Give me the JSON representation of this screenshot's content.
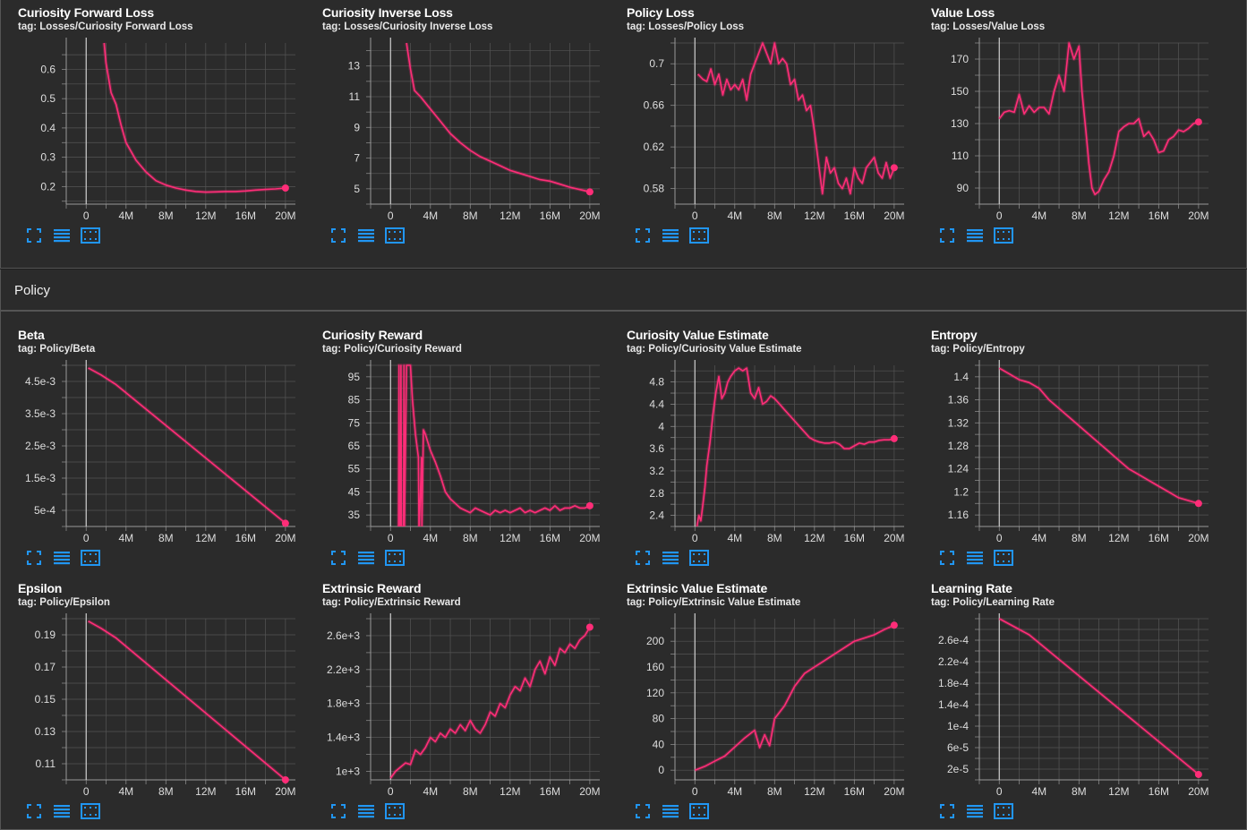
{
  "section_title": "Policy",
  "accent_color": "#ff2d78",
  "icons": [
    "fit-to-data-icon",
    "toggle-log-scale-icon",
    "download-icon"
  ],
  "charts": [
    {
      "id": "c1",
      "title": "Curiosity Forward Loss",
      "tag": "tag: Losses/Curiosity Forward Loss",
      "chart_data": {
        "type": "line",
        "x_ticks": [
          "0",
          "4M",
          "8M",
          "12M",
          "16M",
          "20M"
        ],
        "y_ticks": [
          "0.2",
          "0.3",
          "0.4",
          "0.5",
          "0.6"
        ],
        "y_tick_values": [
          0.2,
          0.3,
          0.4,
          0.5,
          0.6
        ],
        "xlim": [
          -2,
          21
        ],
        "ylim": [
          0.14,
          0.69
        ],
        "x": [
          1.8,
          2,
          2.5,
          3,
          3.5,
          4,
          5,
          6,
          7,
          8,
          9,
          10,
          11,
          12,
          13,
          14,
          15,
          16,
          17,
          18,
          19,
          20
        ],
        "values": [
          0.69,
          0.62,
          0.52,
          0.48,
          0.41,
          0.35,
          0.29,
          0.25,
          0.22,
          0.205,
          0.195,
          0.188,
          0.183,
          0.181,
          0.182,
          0.183,
          0.183,
          0.185,
          0.188,
          0.19,
          0.192,
          0.195
        ]
      }
    },
    {
      "id": "c2",
      "title": "Curiosity Inverse Loss",
      "tag": "tag: Losses/Curiosity Inverse Loss",
      "chart_data": {
        "type": "line",
        "x_ticks": [
          "0",
          "4M",
          "8M",
          "12M",
          "16M",
          "20M"
        ],
        "y_ticks": [
          "5",
          "7",
          "9",
          "11",
          "13"
        ],
        "y_tick_values": [
          5,
          7,
          9,
          11,
          13
        ],
        "xlim": [
          -2,
          21
        ],
        "ylim": [
          4,
          14.5
        ],
        "x": [
          1.6,
          2,
          2.4,
          3,
          4,
          5,
          6,
          7,
          8,
          9,
          10,
          11,
          12,
          13,
          14,
          15,
          16,
          17,
          18,
          19,
          20
        ],
        "values": [
          14.5,
          12.8,
          11.4,
          11,
          10.2,
          9.4,
          8.6,
          8,
          7.5,
          7.1,
          6.8,
          6.5,
          6.2,
          6,
          5.8,
          5.6,
          5.5,
          5.3,
          5.1,
          4.95,
          4.8
        ]
      }
    },
    {
      "id": "c3",
      "title": "Policy Loss",
      "tag": "tag: Losses/Policy Loss",
      "chart_data": {
        "type": "line",
        "x_ticks": [
          "0",
          "4M",
          "8M",
          "12M",
          "16M",
          "20M"
        ],
        "y_ticks": [
          "0.58",
          "0.62",
          "0.66",
          "0.7"
        ],
        "y_tick_values": [
          0.58,
          0.62,
          0.66,
          0.7
        ],
        "xlim": [
          -2,
          21
        ],
        "ylim": [
          0.565,
          0.72
        ],
        "x": [
          0.3,
          0.8,
          1.2,
          1.6,
          2,
          2.4,
          2.8,
          3.2,
          3.6,
          4,
          4.4,
          4.8,
          5.2,
          5.6,
          6,
          6.4,
          6.8,
          7.2,
          7.6,
          8,
          8.4,
          8.8,
          9.2,
          9.6,
          10,
          10.4,
          10.8,
          11.2,
          11.6,
          12,
          12.4,
          12.8,
          13.2,
          13.6,
          14,
          14.4,
          14.8,
          15.2,
          15.6,
          16,
          16.4,
          16.8,
          17.2,
          17.6,
          18,
          18.4,
          18.8,
          19.2,
          19.6,
          20
        ],
        "values": [
          0.69,
          0.685,
          0.683,
          0.695,
          0.68,
          0.69,
          0.67,
          0.685,
          0.675,
          0.68,
          0.675,
          0.685,
          0.665,
          0.69,
          0.7,
          0.71,
          0.72,
          0.71,
          0.7,
          0.72,
          0.7,
          0.705,
          0.7,
          0.68,
          0.685,
          0.665,
          0.67,
          0.655,
          0.66,
          0.635,
          0.605,
          0.575,
          0.61,
          0.595,
          0.6,
          0.585,
          0.58,
          0.59,
          0.575,
          0.6,
          0.59,
          0.585,
          0.6,
          0.605,
          0.61,
          0.595,
          0.59,
          0.605,
          0.59,
          0.6
        ]
      }
    },
    {
      "id": "c4",
      "title": "Value Loss",
      "tag": "tag: Losses/Value Loss",
      "chart_data": {
        "type": "line",
        "x_ticks": [
          "0",
          "4M",
          "8M",
          "12M",
          "16M",
          "20M"
        ],
        "y_ticks": [
          "90",
          "110",
          "130",
          "150",
          "170"
        ],
        "y_tick_values": [
          90,
          110,
          130,
          150,
          170
        ],
        "xlim": [
          -2,
          21
        ],
        "ylim": [
          80,
          180
        ],
        "x": [
          0,
          0.5,
          1,
          1.5,
          2,
          2.5,
          3,
          3.5,
          4,
          4.5,
          5,
          5.5,
          6,
          6.5,
          7,
          7.5,
          8,
          8.3,
          8.7,
          9,
          9.3,
          9.6,
          10,
          10.5,
          11,
          11.5,
          12,
          12.5,
          13,
          13.5,
          14,
          14.5,
          15,
          15.5,
          16,
          16.5,
          17,
          17.5,
          18,
          18.5,
          19,
          19.5,
          20
        ],
        "values": [
          133,
          137,
          138,
          137,
          148,
          136,
          141,
          137,
          140,
          140,
          136,
          150,
          160,
          150,
          180,
          170,
          178,
          150,
          125,
          105,
          90,
          86,
          88,
          95,
          100,
          110,
          125,
          128,
          130,
          130,
          133,
          122,
          125,
          120,
          112,
          113,
          120,
          122,
          126,
          125,
          127,
          130,
          131
        ]
      }
    },
    {
      "id": "c5",
      "title": "Beta",
      "tag": "tag: Policy/Beta",
      "chart_data": {
        "type": "line",
        "x_ticks": [
          "0",
          "4M",
          "8M",
          "12M",
          "16M",
          "20M"
        ],
        "y_ticks": [
          "5e-4",
          "1.5e-3",
          "2.5e-3",
          "3.5e-3",
          "4.5e-3"
        ],
        "y_tick_values": [
          0.0005,
          0.0015,
          0.0025,
          0.0035,
          0.0045
        ],
        "xlim": [
          -2,
          21
        ],
        "ylim": [
          0,
          0.005
        ],
        "x": [
          0.2,
          1.5,
          3,
          20
        ],
        "values": [
          0.00492,
          0.0047,
          0.0044,
          0.0001
        ]
      }
    },
    {
      "id": "c6",
      "title": "Curiosity Reward",
      "tag": "tag: Policy/Curiosity Reward",
      "chart_data": {
        "type": "line",
        "x_ticks": [
          "0",
          "4M",
          "8M",
          "12M",
          "16M",
          "20M"
        ],
        "y_ticks": [
          "35",
          "45",
          "55",
          "65",
          "75",
          "85",
          "95"
        ],
        "y_tick_values": [
          35,
          45,
          55,
          65,
          75,
          85,
          95
        ],
        "xlim": [
          -2,
          21
        ],
        "ylim": [
          30,
          100
        ],
        "x": [
          0.8,
          0.85,
          0.9,
          1.0,
          1.05,
          1.1,
          1.3,
          1.35,
          1.4,
          1.6,
          2,
          2.2,
          2.5,
          2.8,
          2.85,
          2.9,
          3.1,
          3.15,
          3.3,
          3.5,
          4,
          4.5,
          5,
          5.5,
          6,
          6.5,
          7,
          7.5,
          8,
          8.5,
          9,
          9.5,
          10,
          10.5,
          11,
          11.5,
          12,
          12.5,
          13,
          13.5,
          14,
          14.5,
          15,
          15.5,
          16,
          16.5,
          17,
          17.5,
          18,
          18.5,
          19,
          19.5,
          20
        ],
        "values": [
          30,
          100,
          30,
          30,
          100,
          30,
          30,
          100,
          30,
          100,
          100,
          85,
          70,
          60,
          30,
          30,
          60,
          30,
          72,
          70,
          63,
          58,
          52,
          45,
          42,
          40,
          38,
          37,
          36,
          38,
          37,
          36,
          35,
          37,
          36,
          37,
          36,
          37,
          38,
          36,
          37,
          36,
          37,
          38,
          37,
          39,
          37,
          38,
          38,
          39,
          38,
          38,
          39
        ]
      }
    },
    {
      "id": "c7",
      "title": "Curiosity Value Estimate",
      "tag": "tag: Policy/Curiosity Value Estimate",
      "chart_data": {
        "type": "line",
        "x_ticks": [
          "0",
          "4M",
          "8M",
          "12M",
          "16M",
          "20M"
        ],
        "y_ticks": [
          "2.4",
          "2.8",
          "3.2",
          "3.6",
          "4",
          "4.4",
          "4.8"
        ],
        "y_tick_values": [
          2.4,
          2.8,
          3.2,
          3.6,
          4,
          4.4,
          4.8
        ],
        "xlim": [
          -2,
          21
        ],
        "ylim": [
          2.2,
          5.1
        ],
        "x": [
          0.2,
          0.4,
          0.6,
          0.8,
          1.0,
          1.2,
          1.5,
          1.8,
          2.1,
          2.4,
          2.7,
          3,
          3.3,
          3.6,
          4,
          4.4,
          4.8,
          5.2,
          5.6,
          6,
          6.4,
          6.8,
          7.2,
          7.6,
          8,
          8.5,
          9,
          9.5,
          10,
          10.5,
          11,
          11.5,
          12,
          12.5,
          13,
          13.5,
          14,
          14.5,
          15,
          15.5,
          16,
          16.5,
          17,
          17.5,
          18,
          18.5,
          19,
          19.5,
          20
        ],
        "values": [
          2.2,
          2.4,
          2.3,
          2.6,
          2.9,
          3.3,
          3.7,
          4.2,
          4.6,
          4.9,
          4.5,
          4.6,
          4.8,
          4.9,
          5.0,
          5.05,
          5.0,
          5.05,
          4.6,
          4.5,
          4.7,
          4.4,
          4.45,
          4.55,
          4.5,
          4.4,
          4.3,
          4.2,
          4.1,
          4.0,
          3.9,
          3.8,
          3.75,
          3.72,
          3.7,
          3.7,
          3.72,
          3.68,
          3.6,
          3.6,
          3.65,
          3.7,
          3.68,
          3.72,
          3.72,
          3.75,
          3.76,
          3.76,
          3.78
        ]
      }
    },
    {
      "id": "c8",
      "title": "Entropy",
      "tag": "tag: Policy/Entropy",
      "chart_data": {
        "type": "line",
        "x_ticks": [
          "0",
          "4M",
          "8M",
          "12M",
          "16M",
          "20M"
        ],
        "y_ticks": [
          "1.16",
          "1.2",
          "1.24",
          "1.28",
          "1.32",
          "1.36",
          "1.4"
        ],
        "y_tick_values": [
          1.16,
          1.2,
          1.24,
          1.28,
          1.32,
          1.36,
          1.4
        ],
        "xlim": [
          -2,
          21
        ],
        "ylim": [
          1.14,
          1.42
        ],
        "x": [
          0,
          1,
          2,
          3,
          4,
          5,
          6,
          7,
          8,
          9,
          10,
          11,
          12,
          13,
          14,
          15,
          16,
          17,
          18,
          19,
          20
        ],
        "values": [
          1.415,
          1.405,
          1.395,
          1.39,
          1.38,
          1.36,
          1.345,
          1.33,
          1.315,
          1.3,
          1.285,
          1.27,
          1.255,
          1.24,
          1.23,
          1.22,
          1.21,
          1.2,
          1.19,
          1.185,
          1.18
        ]
      }
    },
    {
      "id": "c9",
      "title": "Epsilon",
      "tag": "tag: Policy/Epsilon",
      "chart_data": {
        "type": "line",
        "x_ticks": [
          "0",
          "4M",
          "8M",
          "12M",
          "16M",
          "20M"
        ],
        "y_ticks": [
          "0.11",
          "0.13",
          "0.15",
          "0.17",
          "0.19"
        ],
        "y_tick_values": [
          0.11,
          0.13,
          0.15,
          0.17,
          0.19
        ],
        "xlim": [
          -2,
          21
        ],
        "ylim": [
          0.1,
          0.2
        ],
        "x": [
          0.2,
          1.5,
          3,
          20
        ],
        "values": [
          0.1985,
          0.194,
          0.188,
          0.1
        ]
      }
    },
    {
      "id": "c10",
      "title": "Extrinsic Reward",
      "tag": "tag: Policy/Extrinsic Reward",
      "chart_data": {
        "type": "line",
        "x_ticks": [
          "0",
          "4M",
          "8M",
          "12M",
          "16M",
          "20M"
        ],
        "y_ticks": [
          "1e+3",
          "1.4e+3",
          "1.8e+3",
          "2.2e+3",
          "2.6e+3"
        ],
        "y_tick_values": [
          1000,
          1400,
          1800,
          2200,
          2600
        ],
        "xlim": [
          -2,
          21
        ],
        "ylim": [
          900,
          2800
        ],
        "x": [
          0,
          0.5,
          1,
          1.5,
          2,
          2.5,
          3,
          3.5,
          4,
          4.5,
          5,
          5.5,
          6,
          6.5,
          7,
          7.5,
          8,
          8.5,
          9,
          9.5,
          10,
          10.5,
          11,
          11.5,
          12,
          12.5,
          13,
          13.5,
          14,
          14.5,
          15,
          15.5,
          16,
          16.5,
          17,
          17.5,
          18,
          18.5,
          19,
          19.5,
          20
        ],
        "values": [
          920,
          1000,
          1050,
          1100,
          1080,
          1250,
          1200,
          1280,
          1400,
          1350,
          1450,
          1400,
          1500,
          1450,
          1550,
          1480,
          1600,
          1500,
          1450,
          1550,
          1700,
          1650,
          1800,
          1750,
          1900,
          2000,
          1950,
          2100,
          2000,
          2200,
          2300,
          2150,
          2350,
          2250,
          2450,
          2400,
          2500,
          2450,
          2550,
          2600,
          2700
        ]
      }
    },
    {
      "id": "c11",
      "title": "Extrinsic Value Estimate",
      "tag": "tag: Policy/Extrinsic Value Estimate",
      "chart_data": {
        "type": "line",
        "x_ticks": [
          "0",
          "4M",
          "8M",
          "12M",
          "16M",
          "20M"
        ],
        "y_ticks": [
          "0",
          "40",
          "80",
          "120",
          "160",
          "200"
        ],
        "y_tick_values": [
          0,
          40,
          80,
          120,
          160,
          200
        ],
        "xlim": [
          -2,
          21
        ],
        "ylim": [
          -15,
          235
        ],
        "x": [
          0,
          1,
          2,
          3,
          4,
          5,
          6,
          6.5,
          7,
          7.5,
          8,
          9,
          10,
          11,
          12,
          13,
          14,
          15,
          16,
          17,
          18,
          19,
          20
        ],
        "values": [
          0,
          6,
          14,
          22,
          36,
          50,
          62,
          35,
          55,
          38,
          80,
          100,
          130,
          150,
          160,
          170,
          180,
          190,
          200,
          205,
          210,
          218,
          225
        ]
      }
    },
    {
      "id": "c12",
      "title": "Learning Rate",
      "tag": "tag: Policy/Learning Rate",
      "chart_data": {
        "type": "line",
        "x_ticks": [
          "0",
          "4M",
          "8M",
          "12M",
          "16M",
          "20M"
        ],
        "y_ticks": [
          "2e-5",
          "6e-5",
          "1e-4",
          "1.4e-4",
          "1.8e-4",
          "2.2e-4",
          "2.6e-4"
        ],
        "y_tick_values": [
          2e-05,
          6e-05,
          0.0001,
          0.00014,
          0.00018,
          0.00022,
          0.00026
        ],
        "xlim": [
          -2,
          21
        ],
        "ylim": [
          0,
          0.0003
        ],
        "x": [
          0,
          1.5,
          3,
          20
        ],
        "values": [
          0.0003,
          0.000285,
          0.00027,
          1.01e-05
        ]
      }
    }
  ]
}
